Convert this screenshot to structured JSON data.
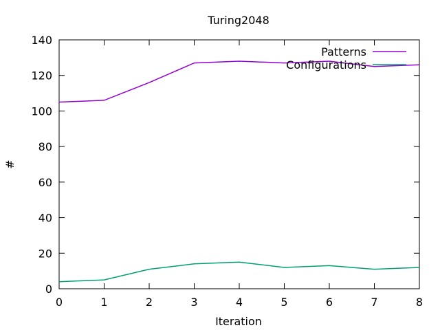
{
  "chart_data": {
    "type": "line",
    "title": "Turing2048",
    "xlabel": "Iteration",
    "ylabel": "#",
    "xlim": [
      0,
      8
    ],
    "ylim": [
      0,
      140
    ],
    "xticks": [
      0,
      1,
      2,
      3,
      4,
      5,
      6,
      7,
      8
    ],
    "yticks": [
      0,
      20,
      40,
      60,
      80,
      100,
      120,
      140
    ],
    "grid": false,
    "legend": "top-right",
    "x": [
      0,
      1,
      2,
      3,
      4,
      5,
      6,
      7,
      8
    ],
    "series": [
      {
        "name": "Patterns",
        "color": "#9400d3",
        "values": [
          105,
          106,
          116,
          127,
          128,
          127,
          128,
          125,
          126
        ]
      },
      {
        "name": "Configurations",
        "color": "#009e73",
        "values": [
          4,
          5,
          11,
          14,
          15,
          12,
          13,
          11,
          12
        ]
      }
    ]
  }
}
